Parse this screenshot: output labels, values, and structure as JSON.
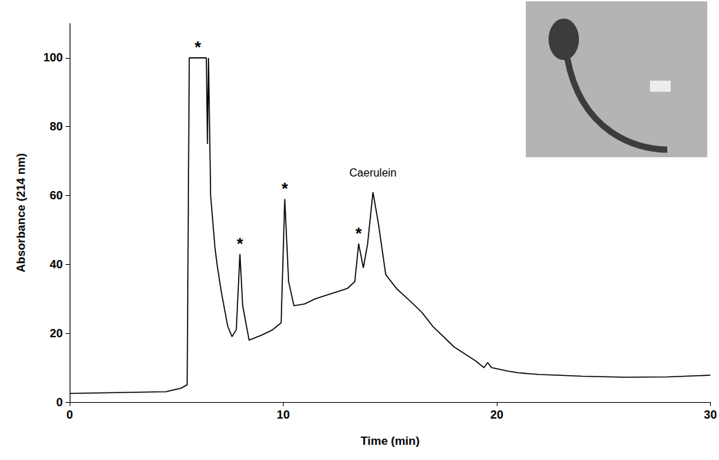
{
  "chart_data": {
    "type": "line",
    "x_label": "Time (min)",
    "y_label": "Absorbance (214 nm)",
    "x": [
      0,
      4.5,
      5.2,
      5.5,
      5.6,
      6.4,
      6.45,
      6.5,
      6.6,
      6.8,
      6.9,
      7.1,
      7.4,
      7.6,
      7.8,
      7.97,
      8.1,
      8.4,
      9.0,
      9.5,
      9.9,
      10.07,
      10.25,
      10.5,
      11.0,
      11.5,
      12.0,
      12.5,
      13.0,
      13.35,
      13.53,
      13.75,
      13.95,
      14.2,
      14.45,
      14.8,
      15.3,
      16.0,
      16.5,
      17.0,
      17.5,
      18.0,
      18.5,
      19.0,
      19.4,
      19.57,
      19.75,
      20.5,
      21.0,
      22.0,
      24.0,
      26.0,
      28.0,
      30.0
    ],
    "values": [
      2.5,
      3,
      4,
      5,
      100,
      100,
      75,
      100,
      60,
      45,
      40,
      32,
      22,
      19,
      21,
      43,
      28,
      18,
      19.5,
      21,
      23,
      59,
      35,
      28,
      28.5,
      30,
      31,
      32,
      33,
      35,
      46,
      39,
      46,
      61,
      52,
      37,
      33,
      29,
      26,
      22,
      19,
      16,
      14,
      12,
      10,
      11.5,
      10,
      9,
      8.5,
      8,
      7.5,
      7.2,
      7.3,
      7.8
    ],
    "color": "#000000",
    "xlim": [
      0,
      30
    ],
    "xticks": [
      0,
      10,
      20,
      30
    ],
    "ylim": [
      0,
      110
    ],
    "yticks": [
      0,
      20,
      40,
      60,
      80,
      100
    ],
    "grid": false,
    "annotations": [
      {
        "text": "*",
        "x": 6.0,
        "y": 103
      },
      {
        "text": "*",
        "x": 7.97,
        "y": 46
      },
      {
        "text": "*",
        "x": 10.07,
        "y": 62
      },
      {
        "text": "*",
        "x": 13.53,
        "y": 49
      },
      {
        "text": "Caerulein",
        "x": 14.2,
        "y": 65
      }
    ]
  }
}
